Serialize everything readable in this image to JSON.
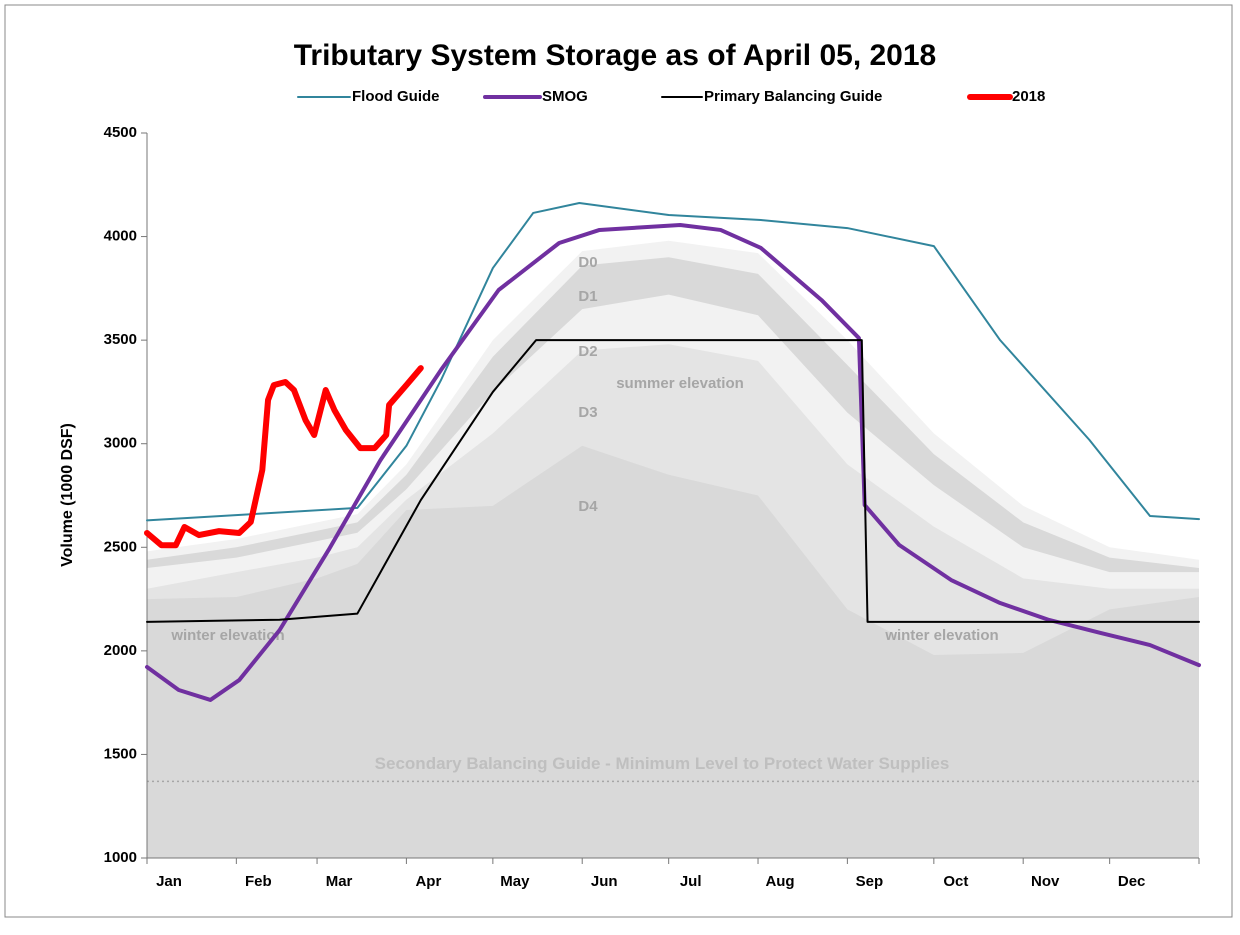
{
  "chart_data": {
    "type": "line",
    "title": "Tributary System Storage as of April 05, 2018",
    "y_label": "Volume (1000 DSF)",
    "ylim": [
      1000,
      4500
    ],
    "yticks": [
      1000,
      1500,
      2000,
      2500,
      3000,
      3500,
      4000,
      4500
    ],
    "xlim": [
      0,
      365
    ],
    "xticks": [
      0,
      31,
      59,
      90,
      120,
      151,
      181,
      212,
      243,
      273,
      304,
      334,
      365
    ],
    "categories": [
      "Jan",
      "Feb",
      "Mar",
      "Apr",
      "May",
      "Jun",
      "Jul",
      "Aug",
      "Sep",
      "Oct",
      "Nov",
      "Dec"
    ],
    "series": [
      {
        "name": "Flood Guide",
        "color": "#31859c",
        "width": 2,
        "x": [
          0,
          73,
          90,
          102,
          120,
          134,
          150,
          181,
          213,
          243,
          273,
          296,
          327,
          348,
          365
        ],
        "values": [
          2630,
          2690,
          2990,
          3307,
          3848,
          4114,
          4162,
          4104,
          4080,
          4041,
          3954,
          3500,
          3018,
          2651,
          2636
        ]
      },
      {
        "name": "SMOG",
        "color": "#7030a0",
        "width": 4,
        "x": [
          0,
          11,
          22,
          32,
          46,
          63,
          81,
          102,
          122,
          143,
          157,
          185,
          199,
          213,
          234,
          247,
          249,
          261,
          279,
          296,
          313,
          331,
          348,
          365
        ],
        "values": [
          1922,
          1811,
          1763,
          1859,
          2100,
          2487,
          2921,
          3356,
          3742,
          3969,
          4032,
          4056,
          4032,
          3945,
          3694,
          3510,
          2704,
          2511,
          2342,
          2231,
          2149,
          2086,
          2028,
          1931
        ]
      },
      {
        "name": "Primary Balancing Guide",
        "color": "#000000",
        "width": 2,
        "x": [
          0,
          46,
          73,
          95,
          120,
          135,
          248,
          250,
          365
        ],
        "values": [
          2140,
          2150,
          2180,
          2728,
          3250,
          3500,
          3500,
          2140,
          2140
        ]
      },
      {
        "name": "2018",
        "color": "#ff0000",
        "width": 6,
        "x": [
          0,
          5,
          10,
          13,
          18,
          25,
          32,
          36,
          40,
          42,
          44,
          48,
          51,
          55,
          58,
          62,
          65,
          69,
          74,
          79,
          83,
          84,
          90,
          95
        ],
        "values": [
          2569,
          2510,
          2510,
          2598,
          2559,
          2578,
          2569,
          2622,
          2873,
          3211,
          3283,
          3298,
          3259,
          3114,
          3042,
          3259,
          3163,
          3066,
          2979,
          2979,
          3042,
          3187,
          3283,
          3365
        ]
      }
    ],
    "band_x": [
      0,
      31,
      59,
      73,
      90,
      120,
      151,
      181,
      212,
      243,
      273,
      304,
      334,
      365
    ],
    "bands": [
      {
        "name": "D0",
        "color": "#f2f2f2",
        "values": [
          2480,
          2540,
          2620,
          2660,
          2900,
          3500,
          3930,
          3980,
          3920,
          3500,
          3050,
          2700,
          2500,
          2440
        ]
      },
      {
        "name": "D1",
        "color": "#d9d9d9",
        "values": [
          2440,
          2500,
          2580,
          2620,
          2850,
          3420,
          3860,
          3900,
          3820,
          3380,
          2950,
          2620,
          2450,
          2400
        ]
      },
      {
        "name": "D2",
        "color": "#f2f2f2",
        "values": [
          2400,
          2450,
          2530,
          2570,
          2780,
          3250,
          3650,
          3720,
          3620,
          3150,
          2800,
          2500,
          2380,
          2380
        ]
      },
      {
        "name": "D3",
        "color": "#e4e4e4",
        "values": [
          2300,
          2380,
          2450,
          2500,
          2730,
          3050,
          3450,
          3480,
          3400,
          2900,
          2600,
          2350,
          2300,
          2300
        ]
      },
      {
        "name": "D4",
        "color": "#d9d9d9",
        "values": [
          2250,
          2260,
          2350,
          2420,
          2680,
          2700,
          2990,
          2850,
          2750,
          2200,
          1980,
          1990,
          2200,
          2260
        ]
      }
    ],
    "annotations": [
      "summer elevation",
      "winter elevation",
      "winter elevation"
    ],
    "reference_line": {
      "label": "Secondary Balancing Guide - Minimum Level to Protect Water Supplies",
      "value": 1370
    }
  }
}
